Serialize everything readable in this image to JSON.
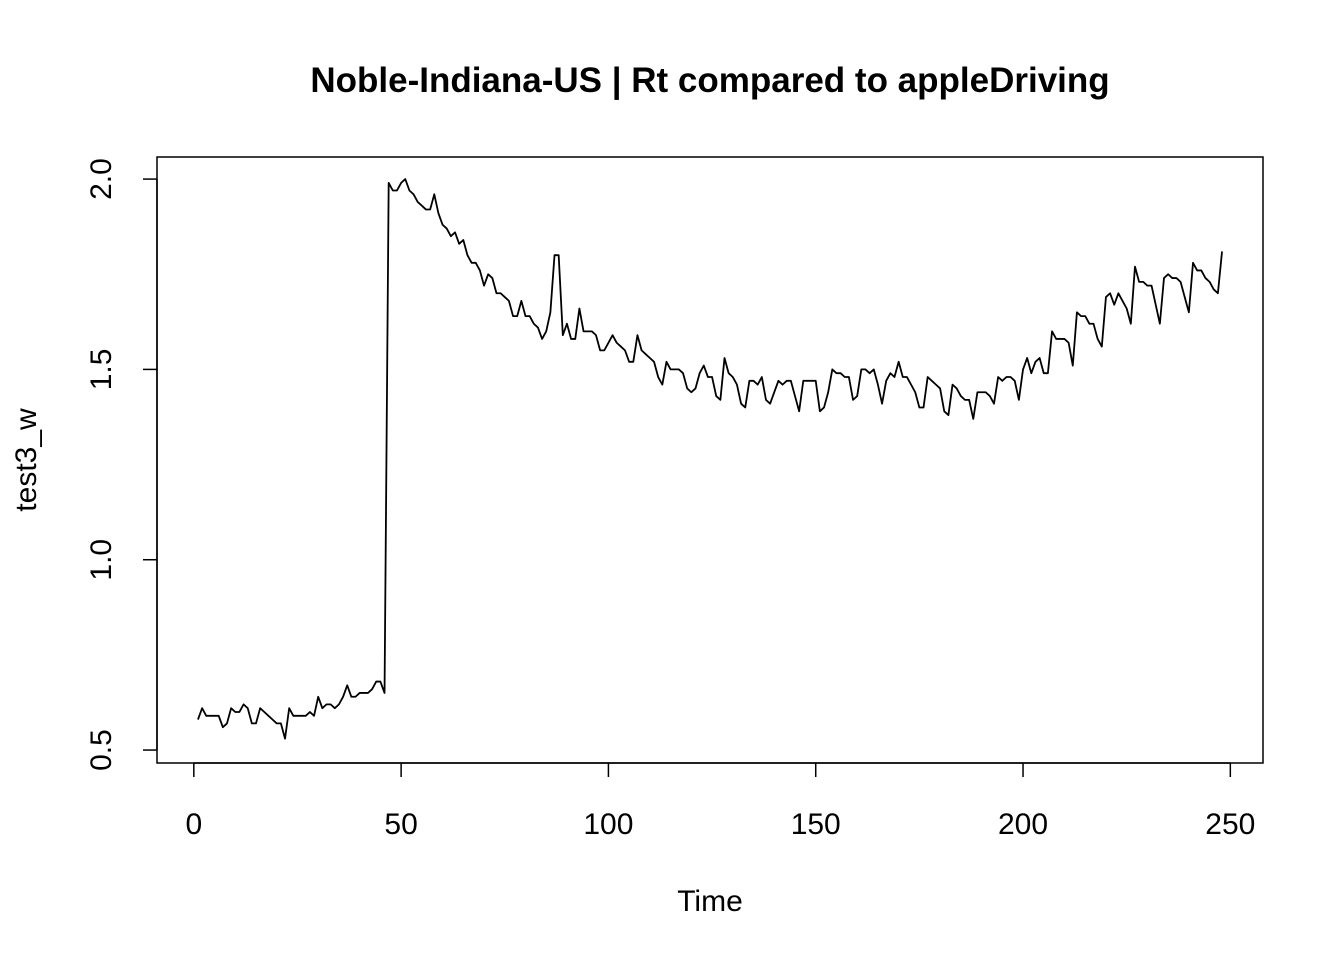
{
  "chart_data": {
    "type": "line",
    "title": "Noble-Indiana-US | Rt compared to appleDriving",
    "x_label": "Time",
    "y_label": "test3_w",
    "xlim": [
      -8.88,
      257.88
    ],
    "ylim": [
      0.466,
      2.058
    ],
    "xticks": [
      0,
      50,
      100,
      150,
      200,
      250
    ],
    "yticks": [
      {
        "value": 0.5,
        "label": "0.5"
      },
      {
        "value": 1.0,
        "label": "1.0"
      },
      {
        "value": 1.5,
        "label": "1.5"
      },
      {
        "value": 2.0,
        "label": "2.0"
      }
    ],
    "x": [
      1,
      2,
      3,
      4,
      5,
      6,
      7,
      8,
      9,
      10,
      11,
      12,
      13,
      14,
      15,
      16,
      17,
      18,
      19,
      20,
      21,
      22,
      23,
      24,
      25,
      26,
      27,
      28,
      29,
      30,
      31,
      32,
      33,
      34,
      35,
      36,
      37,
      38,
      39,
      40,
      41,
      42,
      43,
      44,
      45,
      46,
      47,
      48,
      49,
      50,
      51,
      52,
      53,
      54,
      55,
      56,
      57,
      58,
      59,
      60,
      61,
      62,
      63,
      64,
      65,
      66,
      67,
      68,
      69,
      70,
      71,
      72,
      73,
      74,
      75,
      76,
      77,
      78,
      79,
      80,
      81,
      82,
      83,
      84,
      85,
      86,
      87,
      88,
      89,
      90,
      91,
      92,
      93,
      94,
      95,
      96,
      97,
      98,
      99,
      100,
      101,
      102,
      103,
      104,
      105,
      106,
      107,
      108,
      109,
      110,
      111,
      112,
      113,
      114,
      115,
      116,
      117,
      118,
      119,
      120,
      121,
      122,
      123,
      124,
      125,
      126,
      127,
      128,
      129,
      130,
      131,
      132,
      133,
      134,
      135,
      136,
      137,
      138,
      139,
      140,
      141,
      142,
      143,
      144,
      145,
      146,
      147,
      148,
      149,
      150,
      151,
      152,
      153,
      154,
      155,
      156,
      157,
      158,
      159,
      160,
      161,
      162,
      163,
      164,
      165,
      166,
      167,
      168,
      169,
      170,
      171,
      172,
      173,
      174,
      175,
      176,
      177,
      178,
      179,
      180,
      181,
      182,
      183,
      184,
      185,
      186,
      187,
      188,
      189,
      190,
      191,
      192,
      193,
      194,
      195,
      196,
      197,
      198,
      199,
      200,
      201,
      202,
      203,
      204,
      205,
      206,
      207,
      208,
      209,
      210,
      211,
      212,
      213,
      214,
      215,
      216,
      217,
      218,
      219,
      220,
      221,
      222,
      223,
      224,
      225,
      226,
      227,
      228,
      229,
      230,
      231,
      232,
      233,
      234,
      235,
      236,
      237,
      238,
      239,
      240,
      241,
      242,
      243,
      244,
      245,
      246,
      247,
      248
    ],
    "series": [
      {
        "color": "#000000",
        "values": [
          0.58,
          0.61,
          0.59,
          0.59,
          0.59,
          0.59,
          0.56,
          0.57,
          0.61,
          0.6,
          0.6,
          0.62,
          0.61,
          0.57,
          0.57,
          0.61,
          0.6,
          0.59,
          0.58,
          0.57,
          0.57,
          0.53,
          0.61,
          0.59,
          0.59,
          0.59,
          0.59,
          0.6,
          0.59,
          0.64,
          0.61,
          0.62,
          0.62,
          0.61,
          0.62,
          0.64,
          0.67,
          0.64,
          0.64,
          0.65,
          0.65,
          0.65,
          0.66,
          0.68,
          0.68,
          0.65,
          1.99,
          1.97,
          1.97,
          1.99,
          2.0,
          1.97,
          1.96,
          1.94,
          1.93,
          1.92,
          1.92,
          1.96,
          1.91,
          1.88,
          1.87,
          1.85,
          1.86,
          1.83,
          1.84,
          1.8,
          1.78,
          1.78,
          1.76,
          1.72,
          1.75,
          1.74,
          1.7,
          1.7,
          1.69,
          1.68,
          1.64,
          1.64,
          1.68,
          1.64,
          1.64,
          1.62,
          1.61,
          1.58,
          1.6,
          1.65,
          1.8,
          1.8,
          1.59,
          1.62,
          1.58,
          1.58,
          1.66,
          1.6,
          1.6,
          1.6,
          1.59,
          1.55,
          1.55,
          1.57,
          1.59,
          1.57,
          1.56,
          1.55,
          1.52,
          1.52,
          1.59,
          1.55,
          1.54,
          1.53,
          1.52,
          1.48,
          1.46,
          1.52,
          1.5,
          1.5,
          1.5,
          1.49,
          1.45,
          1.44,
          1.45,
          1.49,
          1.51,
          1.48,
          1.48,
          1.43,
          1.42,
          1.53,
          1.49,
          1.48,
          1.46,
          1.41,
          1.4,
          1.47,
          1.47,
          1.46,
          1.48,
          1.42,
          1.41,
          1.44,
          1.47,
          1.46,
          1.47,
          1.47,
          1.43,
          1.39,
          1.47,
          1.47,
          1.47,
          1.47,
          1.39,
          1.4,
          1.44,
          1.5,
          1.49,
          1.49,
          1.48,
          1.48,
          1.42,
          1.43,
          1.5,
          1.5,
          1.49,
          1.5,
          1.46,
          1.41,
          1.47,
          1.49,
          1.48,
          1.52,
          1.48,
          1.48,
          1.46,
          1.44,
          1.4,
          1.4,
          1.48,
          1.47,
          1.46,
          1.45,
          1.39,
          1.38,
          1.46,
          1.45,
          1.43,
          1.42,
          1.42,
          1.37,
          1.44,
          1.44,
          1.44,
          1.43,
          1.41,
          1.48,
          1.47,
          1.48,
          1.48,
          1.47,
          1.42,
          1.5,
          1.53,
          1.49,
          1.52,
          1.53,
          1.49,
          1.49,
          1.6,
          1.58,
          1.58,
          1.58,
          1.57,
          1.51,
          1.65,
          1.64,
          1.64,
          1.62,
          1.62,
          1.58,
          1.56,
          1.69,
          1.7,
          1.67,
          1.7,
          1.68,
          1.66,
          1.62,
          1.77,
          1.73,
          1.73,
          1.72,
          1.72,
          1.67,
          1.62,
          1.74,
          1.75,
          1.74,
          1.74,
          1.73,
          1.69,
          1.65,
          1.78,
          1.76,
          1.76,
          1.74,
          1.73,
          1.71,
          1.7,
          1.81
        ]
      }
    ]
  }
}
